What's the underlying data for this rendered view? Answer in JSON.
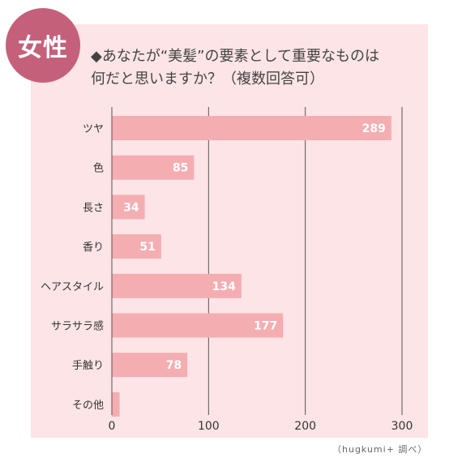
{
  "badge": {
    "label": "女性"
  },
  "title": {
    "line1": "◆あなたが“美髪”の要素として重要なものは",
    "line2": "何だと思いますか？（複数回答可）"
  },
  "source": "（hugkumi+ 調べ）",
  "colors": {
    "panel": "#fde4e6",
    "bar": "#f4aeb2",
    "badge": "#c5607b",
    "grid": "#555555"
  },
  "chart_data": {
    "type": "bar",
    "orientation": "horizontal",
    "categories": [
      "ツヤ",
      "色",
      "長さ",
      "香り",
      "ヘアスタイル",
      "サラサラ感",
      "手触り",
      "その他"
    ],
    "values": [
      289,
      85,
      34,
      51,
      134,
      177,
      78,
      8
    ],
    "value_labels": [
      "289",
      "85",
      "34",
      "51",
      "134",
      "177",
      "78",
      ""
    ],
    "xlim": [
      0,
      300
    ],
    "xticks": [
      0,
      100,
      200,
      300
    ],
    "xtick_labels": [
      "0",
      "100",
      "200",
      "300"
    ],
    "grid": true,
    "legend": "none"
  }
}
